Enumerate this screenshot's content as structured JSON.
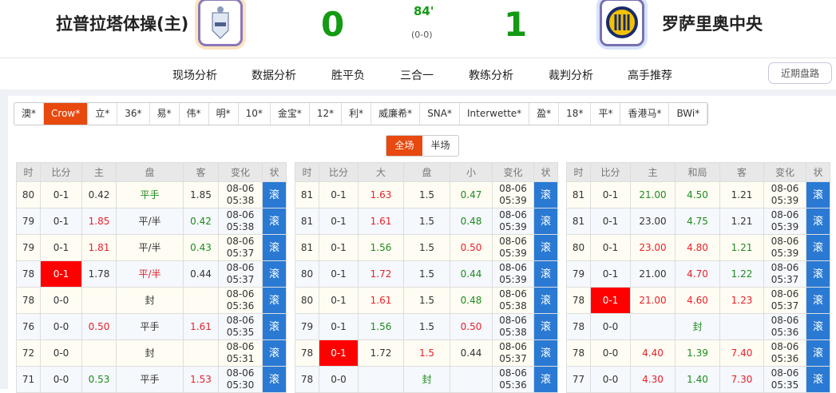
{
  "match": {
    "home": "拉普拉塔体操(主)",
    "away": "罗萨里奥中央",
    "home_score": "0",
    "away_score": "1",
    "minute": "84'",
    "halftime": "(0-0)"
  },
  "nav": {
    "items": [
      "现场分析",
      "数据分析",
      "胜平负",
      "三合一",
      "教练分析",
      "裁判分析",
      "高手推荐"
    ],
    "recent": "近期盘路"
  },
  "bookmakers": {
    "items": [
      "澳*",
      "Crow*",
      "立*",
      "36*",
      "易*",
      "伟*",
      "明*",
      "10*",
      "金宝*",
      "12*",
      "利*",
      "威廉希*",
      "SNA*",
      "Interwette*",
      "盈*",
      "18*",
      "平*",
      "香港马*",
      "BWi*"
    ],
    "active": "Crow*"
  },
  "period": {
    "items": [
      "全场",
      "半场"
    ],
    "active": "全场"
  },
  "colors": {
    "accent": "#e8490f",
    "status": "#2a7ad4",
    "up": "#e8202a",
    "down": "#1f8a1f",
    "highlight": "#ff0000"
  },
  "tables": [
    {
      "headers": [
        "时",
        "比分",
        "主",
        "盘",
        "客",
        "变化",
        "状"
      ],
      "rows": [
        {
          "cells": [
            "80",
            "0-1",
            "0.42",
            "平手",
            "1.85",
            "08-06 05:38",
            "滚"
          ],
          "tones": [
            "",
            "",
            "",
            "green",
            "",
            "",
            ""
          ]
        },
        {
          "cells": [
            "79",
            "0-1",
            "1.85",
            "平/半",
            "0.42",
            "08-06 05:38",
            "滚"
          ],
          "tones": [
            "",
            "",
            "red",
            "",
            "green",
            "",
            ""
          ]
        },
        {
          "cells": [
            "79",
            "0-1",
            "1.81",
            "平/半",
            "0.43",
            "08-06 05:37",
            "滚"
          ],
          "tones": [
            "",
            "",
            "red",
            "",
            "green",
            "",
            ""
          ]
        },
        {
          "cells": [
            "78",
            "0-1",
            "1.78",
            "平/半",
            "0.44",
            "08-06 05:37",
            "滚"
          ],
          "tones": [
            "",
            "hl",
            "",
            "red",
            "",
            "",
            ""
          ]
        },
        {
          "cells": [
            "78",
            "0-0",
            "",
            "封",
            "",
            "08-06 05:36",
            "滚"
          ],
          "tones": [
            "",
            "",
            "",
            "",
            "",
            "",
            ""
          ]
        },
        {
          "cells": [
            "76",
            "0-0",
            "0.50",
            "平手",
            "1.61",
            "08-06 05:35",
            "滚"
          ],
          "tones": [
            "",
            "",
            "red",
            "",
            "red",
            "",
            ""
          ]
        },
        {
          "cells": [
            "72",
            "0-0",
            "",
            "封",
            "",
            "08-06 05:31",
            "滚"
          ],
          "tones": [
            "",
            "",
            "",
            "",
            "",
            "",
            ""
          ]
        },
        {
          "cells": [
            "71",
            "0-0",
            "0.53",
            "平手",
            "1.53",
            "08-06 05:30",
            "滚"
          ],
          "tones": [
            "",
            "",
            "green",
            "",
            "red",
            "",
            ""
          ]
        }
      ]
    },
    {
      "headers": [
        "时",
        "比分",
        "大",
        "盘",
        "小",
        "变化",
        "状"
      ],
      "rows": [
        {
          "cells": [
            "81",
            "0-1",
            "1.63",
            "1.5",
            "0.47",
            "08-06 05:39",
            "滚"
          ],
          "tones": [
            "",
            "",
            "red",
            "",
            "green",
            "",
            ""
          ]
        },
        {
          "cells": [
            "81",
            "0-1",
            "1.61",
            "1.5",
            "0.48",
            "08-06 05:39",
            "滚"
          ],
          "tones": [
            "",
            "",
            "red",
            "",
            "green",
            "",
            ""
          ]
        },
        {
          "cells": [
            "81",
            "0-1",
            "1.56",
            "1.5",
            "0.50",
            "08-06 05:39",
            "滚"
          ],
          "tones": [
            "",
            "",
            "green",
            "",
            "red",
            "",
            ""
          ]
        },
        {
          "cells": [
            "80",
            "0-1",
            "1.72",
            "1.5",
            "0.44",
            "08-06 05:39",
            "滚"
          ],
          "tones": [
            "",
            "",
            "red",
            "",
            "green",
            "",
            ""
          ]
        },
        {
          "cells": [
            "80",
            "0-1",
            "1.61",
            "1.5",
            "0.48",
            "08-06 05:38",
            "滚"
          ],
          "tones": [
            "",
            "",
            "red",
            "",
            "green",
            "",
            ""
          ]
        },
        {
          "cells": [
            "79",
            "0-1",
            "1.56",
            "1.5",
            "0.50",
            "08-06 05:38",
            "滚"
          ],
          "tones": [
            "",
            "",
            "green",
            "",
            "red",
            "",
            ""
          ]
        },
        {
          "cells": [
            "78",
            "0-1",
            "1.72",
            "1.5",
            "0.44",
            "08-06 05:37",
            "滚"
          ],
          "tones": [
            "",
            "hl",
            "",
            "red",
            "",
            "",
            ""
          ]
        },
        {
          "cells": [
            "78",
            "0-0",
            "",
            "封",
            "",
            "08-06 05:36",
            "滚"
          ],
          "tones": [
            "",
            "",
            "",
            "green",
            "",
            "",
            ""
          ]
        }
      ]
    },
    {
      "headers": [
        "时",
        "比分",
        "主",
        "和局",
        "客",
        "变化",
        "状"
      ],
      "rows": [
        {
          "cells": [
            "81",
            "0-1",
            "21.00",
            "4.50",
            "1.21",
            "08-06 05:39",
            "滚"
          ],
          "tones": [
            "",
            "",
            "green",
            "green",
            "",
            "",
            ""
          ]
        },
        {
          "cells": [
            "81",
            "0-1",
            "23.00",
            "4.75",
            "1.21",
            "08-06 05:39",
            "滚"
          ],
          "tones": [
            "",
            "",
            "",
            "green",
            "",
            "",
            ""
          ]
        },
        {
          "cells": [
            "80",
            "0-1",
            "23.00",
            "4.80",
            "1.21",
            "08-06 05:39",
            "滚"
          ],
          "tones": [
            "",
            "",
            "red",
            "red",
            "green",
            "",
            ""
          ]
        },
        {
          "cells": [
            "79",
            "0-1",
            "21.00",
            "4.70",
            "1.22",
            "08-06 05:37",
            "滚"
          ],
          "tones": [
            "",
            "",
            "",
            "red",
            "green",
            "",
            ""
          ]
        },
        {
          "cells": [
            "78",
            "0-1",
            "21.00",
            "4.60",
            "1.23",
            "08-06 05:37",
            "滚"
          ],
          "tones": [
            "",
            "hl",
            "red",
            "red",
            "red",
            "",
            ""
          ]
        },
        {
          "cells": [
            "78",
            "0-0",
            "",
            "封",
            "",
            "08-06 05:36",
            "滚"
          ],
          "tones": [
            "",
            "",
            "",
            "green",
            "",
            "",
            ""
          ]
        },
        {
          "cells": [
            "78",
            "0-0",
            "4.40",
            "1.39",
            "7.40",
            "08-06 05:36",
            "滚"
          ],
          "tones": [
            "",
            "",
            "red",
            "green",
            "red",
            "",
            ""
          ]
        },
        {
          "cells": [
            "77",
            "0-0",
            "4.30",
            "1.40",
            "7.30",
            "08-06 05:35",
            "滚"
          ],
          "tones": [
            "",
            "",
            "red",
            "green",
            "red",
            "",
            ""
          ]
        }
      ]
    }
  ]
}
